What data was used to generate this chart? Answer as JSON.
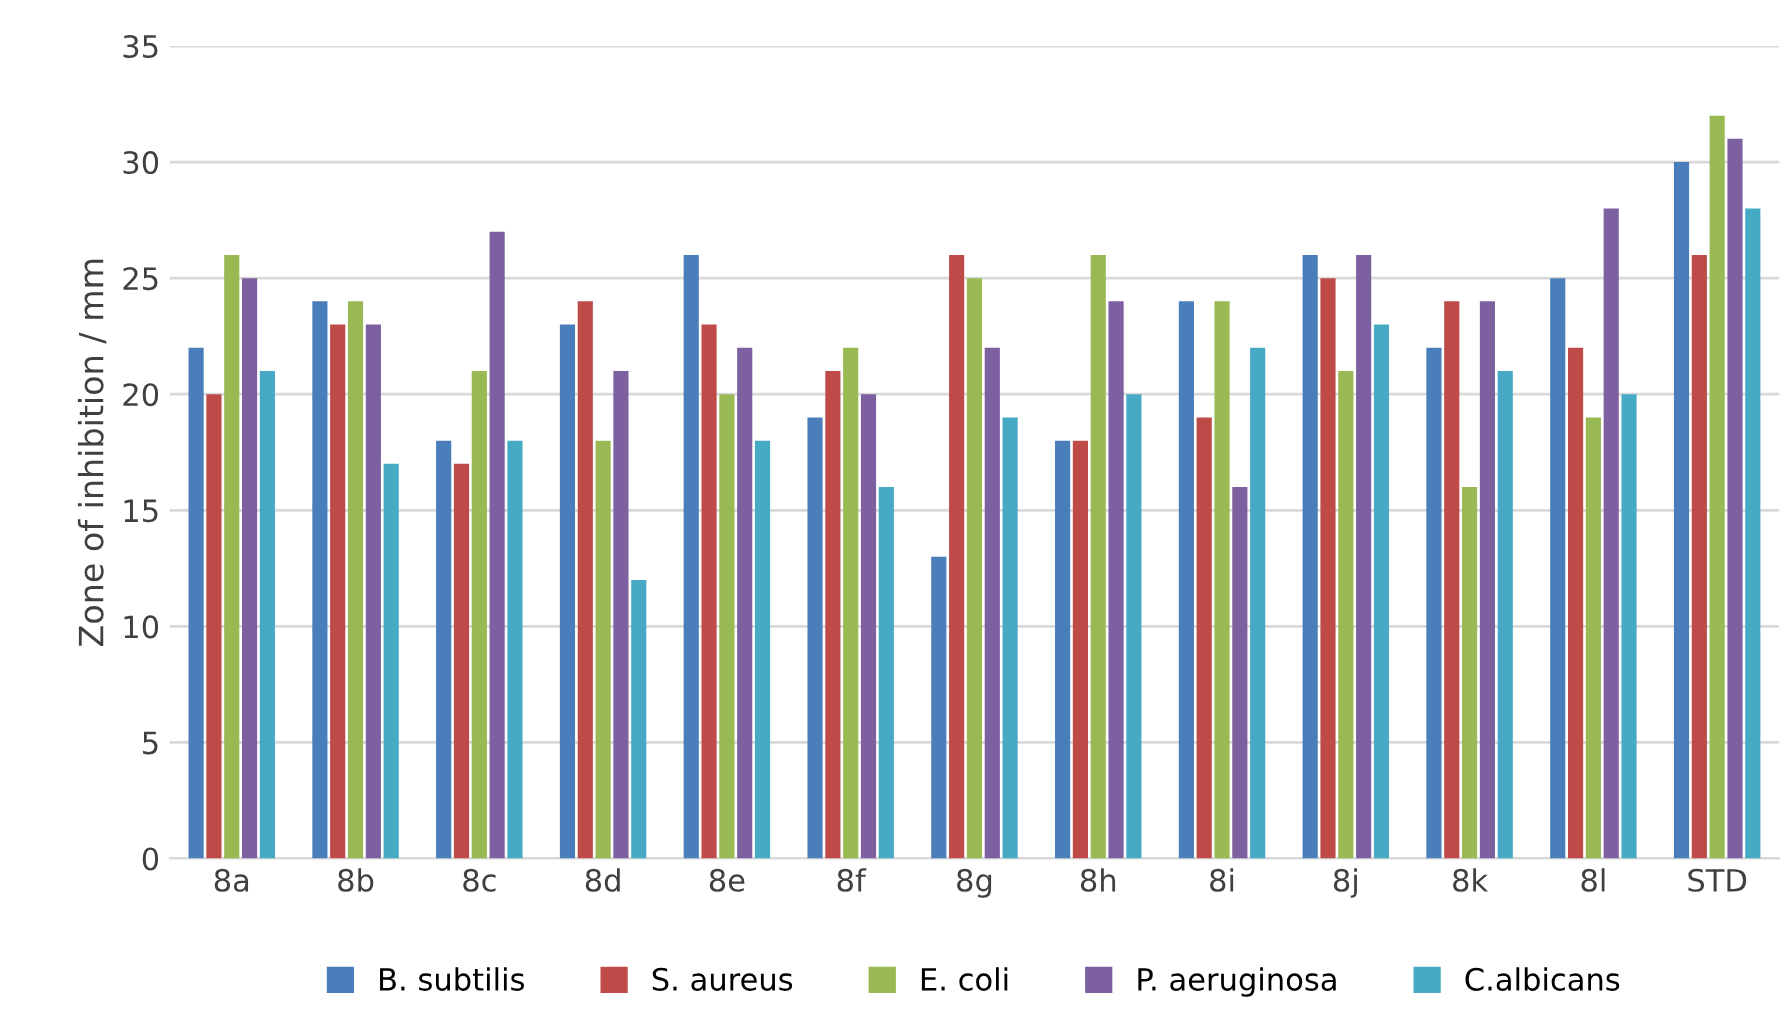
{
  "chart_data": {
    "type": "bar",
    "ylabel": "Zone of inhibition / mm",
    "categories": [
      "8a",
      "8b",
      "8c",
      "8d",
      "8e",
      "8f",
      "8g",
      "8h",
      "8i",
      "8j",
      "8k",
      "8l",
      "STD"
    ],
    "series": [
      {
        "name": "B. subtilis",
        "color": "#4a7ebb",
        "values": [
          22,
          24,
          18,
          23,
          26,
          19,
          13,
          18,
          24,
          26,
          22,
          25,
          30
        ]
      },
      {
        "name": "S. aureus",
        "color": "#be4b48",
        "values": [
          20,
          23,
          17,
          24,
          23,
          21,
          26,
          18,
          19,
          25,
          24,
          22,
          26
        ]
      },
      {
        "name": "E. coli",
        "color": "#98b954",
        "values": [
          26,
          24,
          21,
          18,
          20,
          22,
          25,
          26,
          24,
          21,
          16,
          19,
          32
        ]
      },
      {
        "name": "P. aeruginosa",
        "color": "#7d60a0",
        "values": [
          25,
          23,
          27,
          21,
          22,
          20,
          22,
          24,
          16,
          26,
          24,
          28,
          31
        ]
      },
      {
        "name": "C.albicans",
        "color": "#46aac5",
        "values": [
          21,
          17,
          18,
          12,
          18,
          16,
          19,
          20,
          22,
          23,
          21,
          20,
          28
        ]
      }
    ],
    "ylim": [
      0,
      35
    ],
    "yticks": [
      0,
      5,
      10,
      15,
      20,
      25,
      30,
      35
    ],
    "grid": "y",
    "legend": "bottom"
  }
}
